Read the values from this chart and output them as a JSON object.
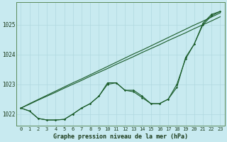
{
  "title": "Graphe pression niveau de la mer (hPa)",
  "background_color": "#c8eaf0",
  "grid_color": "#b0d8e0",
  "line_color": "#1a5c2a",
  "x_ticks": [
    0,
    1,
    2,
    3,
    4,
    5,
    6,
    7,
    8,
    9,
    10,
    11,
    12,
    13,
    14,
    15,
    16,
    17,
    18,
    19,
    20,
    21,
    22,
    23
  ],
  "ylim": [
    1021.6,
    1025.75
  ],
  "yticks": [
    1022,
    1023,
    1024,
    1025
  ],
  "series_straight1": [
    1022.2,
    1022.35,
    1022.49,
    1022.63,
    1022.77,
    1022.91,
    1023.05,
    1023.18,
    1023.32,
    1023.46,
    1023.6,
    1023.74,
    1023.88,
    1024.02,
    1024.15,
    1024.29,
    1024.43,
    1024.57,
    1024.71,
    1024.85,
    1024.99,
    1025.12,
    1025.26,
    1025.4
  ],
  "series_straight2": [
    1022.2,
    1022.33,
    1022.47,
    1022.6,
    1022.73,
    1022.87,
    1023.0,
    1023.13,
    1023.27,
    1023.4,
    1023.53,
    1023.67,
    1023.8,
    1023.93,
    1024.07,
    1024.2,
    1024.33,
    1024.47,
    1024.6,
    1024.73,
    1024.87,
    1025.0,
    1025.13,
    1025.27
  ],
  "series_jagged": [
    1022.2,
    1022.1,
    1021.85,
    1021.8,
    1021.8,
    1021.82,
    1022.0,
    1022.2,
    1022.35,
    1022.6,
    1023.05,
    1023.05,
    1022.8,
    1022.8,
    1022.6,
    1022.35,
    1022.35,
    1022.5,
    1023.0,
    1023.85,
    1024.35,
    1025.05,
    1025.35,
    1025.45
  ],
  "series_smooth": [
    1022.2,
    1022.1,
    1021.85,
    1021.8,
    1021.8,
    1021.82,
    1022.0,
    1022.2,
    1022.35,
    1022.6,
    1023.0,
    1023.05,
    1022.8,
    1022.75,
    1022.55,
    1022.35,
    1022.35,
    1022.5,
    1022.9,
    1023.9,
    1024.35,
    1025.0,
    1025.3,
    1025.45
  ]
}
